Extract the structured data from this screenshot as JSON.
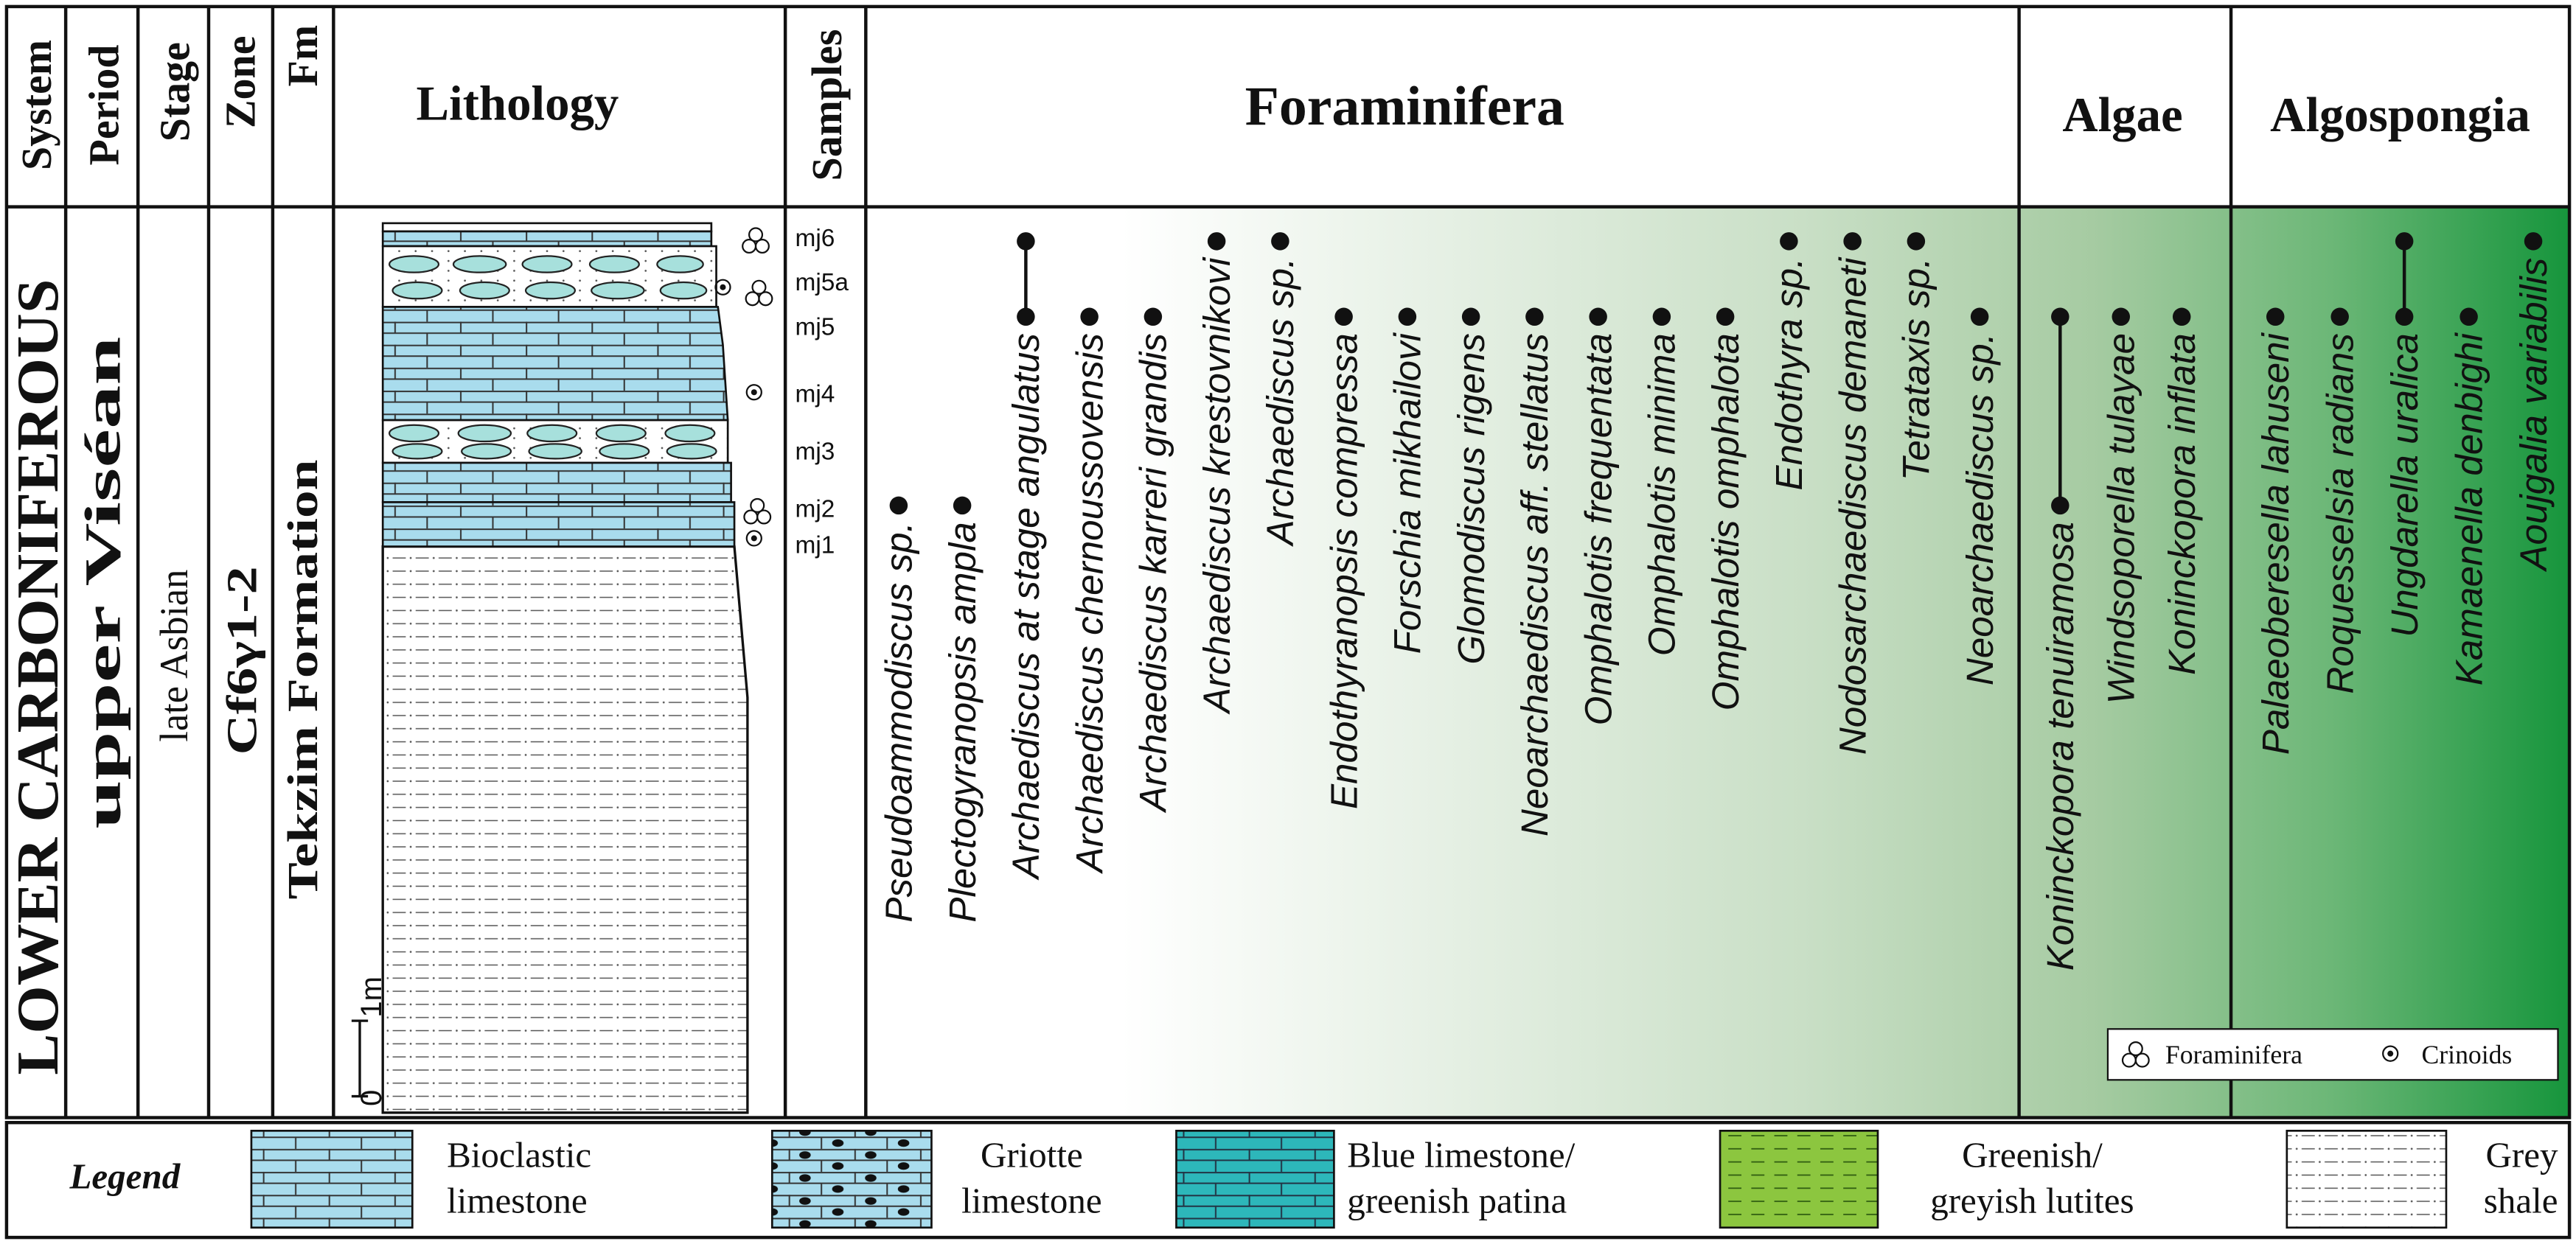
{
  "header": {
    "system": "System",
    "period": "Period",
    "stage": "Stage",
    "zone": "Zone",
    "fm": "Fm",
    "lithology": "Lithology",
    "samples": "Samples",
    "foraminifera": "Foraminifera",
    "algae": "Algae",
    "algospongia": "Algospongia"
  },
  "units": {
    "system": "LOWER CARBONIFEROUS",
    "period": "upper Viséan",
    "stage": "late Asbian",
    "zone": "Cf6γ1-2",
    "fm": "Tekzim Formation"
  },
  "scale": {
    "zero": "0",
    "unit": "1m"
  },
  "samples": [
    "mj6",
    "mj5a",
    "mj5",
    "mj4",
    "mj3",
    "mj2",
    "mj1"
  ],
  "taxa": {
    "foraminifera": [
      {
        "name": "Pseudoammodiscus sp.",
        "range": [
          5,
          5
        ]
      },
      {
        "name": "Plectogyranopsis ampla",
        "range": [
          5,
          5
        ]
      },
      {
        "name": "Archaediscus at stage angulatus",
        "range": [
          0,
          2
        ]
      },
      {
        "name": "Archaediscus chernoussovensis",
        "range": [
          2,
          2
        ]
      },
      {
        "name": "Archaediscus karreri grandis",
        "range": [
          2,
          2
        ]
      },
      {
        "name": "Archaediscus krestovnikovi",
        "range": [
          0,
          0
        ]
      },
      {
        "name": "Archaediscus sp.",
        "range": [
          0,
          0
        ]
      },
      {
        "name": "Endothyranopsis compressa",
        "range": [
          2,
          2
        ]
      },
      {
        "name": "Forschia mikhailovi",
        "range": [
          2,
          2
        ]
      },
      {
        "name": "Glomodiscus rigens",
        "range": [
          2,
          2
        ]
      },
      {
        "name": "Neoarchaediscus aff. stellatus",
        "range": [
          2,
          2
        ]
      },
      {
        "name": "Omphalotis frequentata",
        "range": [
          2,
          2
        ]
      },
      {
        "name": "Omphalotis minima",
        "range": [
          2,
          2
        ]
      },
      {
        "name": "Omphalotis omphalota",
        "range": [
          2,
          2
        ]
      },
      {
        "name": "Endothyra sp.",
        "range": [
          0,
          0
        ]
      },
      {
        "name": "Nodosarchaediscus demaneti",
        "range": [
          0,
          0
        ]
      },
      {
        "name": "Tetrataxis sp.",
        "range": [
          0,
          0
        ]
      },
      {
        "name": "Neoarchaediscus sp.",
        "range": [
          2,
          2
        ]
      }
    ],
    "algae": [
      {
        "name": "Koninckopora tenuiramosa",
        "range": [
          2,
          5
        ]
      },
      {
        "name": "Windsoporella tulayae",
        "range": [
          2,
          2
        ]
      },
      {
        "name": "Koninckopora inflata",
        "range": [
          2,
          2
        ]
      }
    ],
    "algospongia": [
      {
        "name": "Palaeoberesella lahuseni",
        "range": [
          2,
          2
        ]
      },
      {
        "name": "Roquesselsia radians",
        "range": [
          2,
          2
        ]
      },
      {
        "name": "Ungdarella uralica",
        "range": [
          0,
          2
        ]
      },
      {
        "name": "Kamaenella denbighi",
        "range": [
          2,
          2
        ]
      },
      {
        "name": "Aoujgalia variabilis",
        "range": [
          0,
          0
        ]
      }
    ]
  },
  "key": {
    "foraminifera": "Foraminifera",
    "crinoids": "Crinoids"
  },
  "legend": {
    "title": "Legend",
    "items": [
      {
        "lines": [
          "Bioclastic",
          "limestone"
        ]
      },
      {
        "lines": [
          "Griotte",
          "limestone"
        ]
      },
      {
        "lines": [
          "Blue limestone/",
          "greenish patina"
        ]
      },
      {
        "lines": [
          "Greenish/",
          "greyish lutites"
        ]
      },
      {
        "lines": [
          "Grey",
          "shale"
        ]
      }
    ]
  }
}
